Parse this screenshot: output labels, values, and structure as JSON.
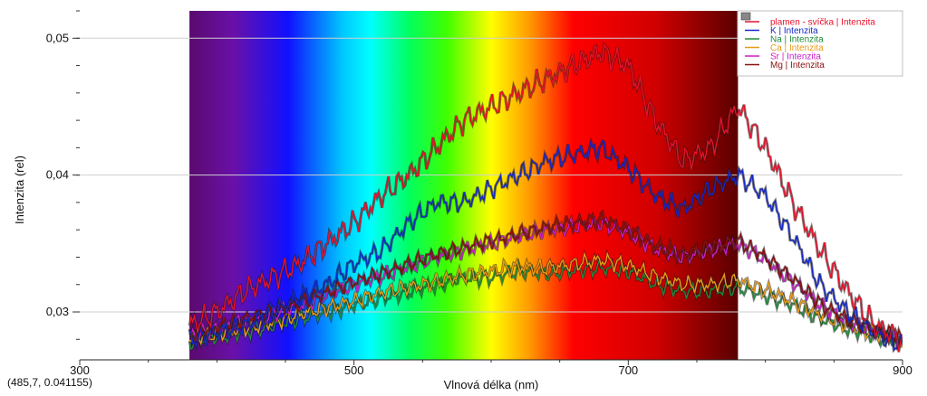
{
  "chart_data": {
    "type": "line",
    "title": "",
    "xlabel": "Vlnová délka (nm)",
    "ylabel": "Intenzita (rel)",
    "xlim": [
      300,
      900
    ],
    "ylim": [
      0.0265,
      0.052
    ],
    "x_ticks": [
      {
        "value": 300,
        "label": "300"
      },
      {
        "value": 500,
        "label": "500"
      },
      {
        "value": 700,
        "label": "700"
      },
      {
        "value": 900,
        "label": "900"
      }
    ],
    "y_ticks": [
      {
        "value": 0.03,
        "label": "0,03"
      },
      {
        "value": 0.04,
        "label": "0,04"
      },
      {
        "value": 0.05,
        "label": "0,05"
      }
    ],
    "y_minor_step": 0.002,
    "spectrum_band": {
      "from": 380,
      "to": 780
    },
    "legend_position": "top-right",
    "series": [
      {
        "name": "plamen - svíčka | Intenzita",
        "color": "#e8102a",
        "x": [
          380,
          400,
          420,
          440,
          460,
          480,
          500,
          520,
          540,
          560,
          580,
          600,
          620,
          640,
          660,
          680,
          700,
          720,
          740,
          760,
          780,
          800,
          820,
          840,
          860,
          880,
          900
        ],
        "y": [
          0.029,
          0.03,
          0.0315,
          0.0325,
          0.0335,
          0.035,
          0.0365,
          0.0385,
          0.04,
          0.042,
          0.044,
          0.045,
          0.046,
          0.047,
          0.048,
          0.049,
          0.048,
          0.044,
          0.041,
          0.042,
          0.045,
          0.042,
          0.038,
          0.0345,
          0.0315,
          0.029,
          0.028
        ]
      },
      {
        "name": "K | Intenzita",
        "color": "#1428c8",
        "x": [
          380,
          400,
          420,
          440,
          460,
          480,
          500,
          520,
          540,
          560,
          580,
          600,
          620,
          640,
          660,
          680,
          700,
          720,
          740,
          760,
          780,
          800,
          820,
          840,
          860,
          880,
          900
        ],
        "y": [
          0.028,
          0.0285,
          0.029,
          0.03,
          0.031,
          0.032,
          0.0335,
          0.0345,
          0.0365,
          0.038,
          0.038,
          0.039,
          0.04,
          0.041,
          0.0415,
          0.042,
          0.0405,
          0.0385,
          0.0375,
          0.039,
          0.04,
          0.0385,
          0.0355,
          0.032,
          0.03,
          0.0285,
          0.0275
        ]
      },
      {
        "name": "Na | Intenzita",
        "color": "#1f8a3a",
        "x": [
          380,
          400,
          420,
          440,
          460,
          480,
          500,
          520,
          540,
          560,
          580,
          600,
          620,
          640,
          660,
          680,
          700,
          720,
          740,
          760,
          780,
          800,
          820,
          840,
          860,
          880,
          900
        ],
        "y": [
          0.0278,
          0.0282,
          0.0285,
          0.029,
          0.0295,
          0.03,
          0.0305,
          0.031,
          0.0315,
          0.032,
          0.0325,
          0.0325,
          0.033,
          0.0328,
          0.033,
          0.0332,
          0.033,
          0.032,
          0.0315,
          0.0315,
          0.0318,
          0.0312,
          0.0305,
          0.0295,
          0.0288,
          0.0282,
          0.0278
        ]
      },
      {
        "name": "Ca | Intenzita",
        "color": "#e89a18",
        "x": [
          380,
          400,
          420,
          440,
          460,
          480,
          500,
          520,
          540,
          560,
          580,
          600,
          620,
          640,
          660,
          680,
          700,
          720,
          740,
          760,
          780,
          800,
          820,
          840,
          860,
          880,
          900
        ],
        "y": [
          0.028,
          0.0284,
          0.0288,
          0.0292,
          0.0298,
          0.0303,
          0.0308,
          0.0314,
          0.0318,
          0.0322,
          0.0327,
          0.033,
          0.0333,
          0.0332,
          0.0335,
          0.0338,
          0.0334,
          0.0326,
          0.032,
          0.032,
          0.0323,
          0.0316,
          0.0308,
          0.0298,
          0.029,
          0.0284,
          0.028
        ]
      },
      {
        "name": "Sr | Intenzita",
        "color": "#c81ec8",
        "x": [
          380,
          400,
          420,
          440,
          460,
          480,
          500,
          520,
          540,
          560,
          580,
          600,
          620,
          640,
          660,
          680,
          700,
          720,
          740,
          760,
          780,
          800,
          820,
          840,
          860,
          880,
          900
        ],
        "y": [
          0.0282,
          0.0288,
          0.0293,
          0.0298,
          0.0305,
          0.0312,
          0.032,
          0.0326,
          0.0333,
          0.034,
          0.0345,
          0.035,
          0.0355,
          0.036,
          0.0362,
          0.0365,
          0.0358,
          0.0346,
          0.034,
          0.0345,
          0.035,
          0.0338,
          0.0322,
          0.0305,
          0.0293,
          0.0286,
          0.028
        ]
      },
      {
        "name": "Mg | Intenzita",
        "color": "#8a1010",
        "x": [
          380,
          400,
          420,
          440,
          460,
          480,
          500,
          520,
          540,
          560,
          580,
          600,
          620,
          640,
          660,
          680,
          700,
          720,
          740,
          760,
          780,
          800,
          820,
          840,
          860,
          880,
          900
        ],
        "y": [
          0.0283,
          0.0289,
          0.0295,
          0.03,
          0.0307,
          0.0314,
          0.0322,
          0.0328,
          0.0335,
          0.0342,
          0.0347,
          0.0352,
          0.0357,
          0.0362,
          0.0365,
          0.0368,
          0.036,
          0.0348,
          0.0342,
          0.0347,
          0.0352,
          0.034,
          0.0324,
          0.0306,
          0.0294,
          0.0287,
          0.0281
        ]
      }
    ]
  },
  "status": {
    "coordinate_readout": "(485,7, 0.041155)"
  }
}
